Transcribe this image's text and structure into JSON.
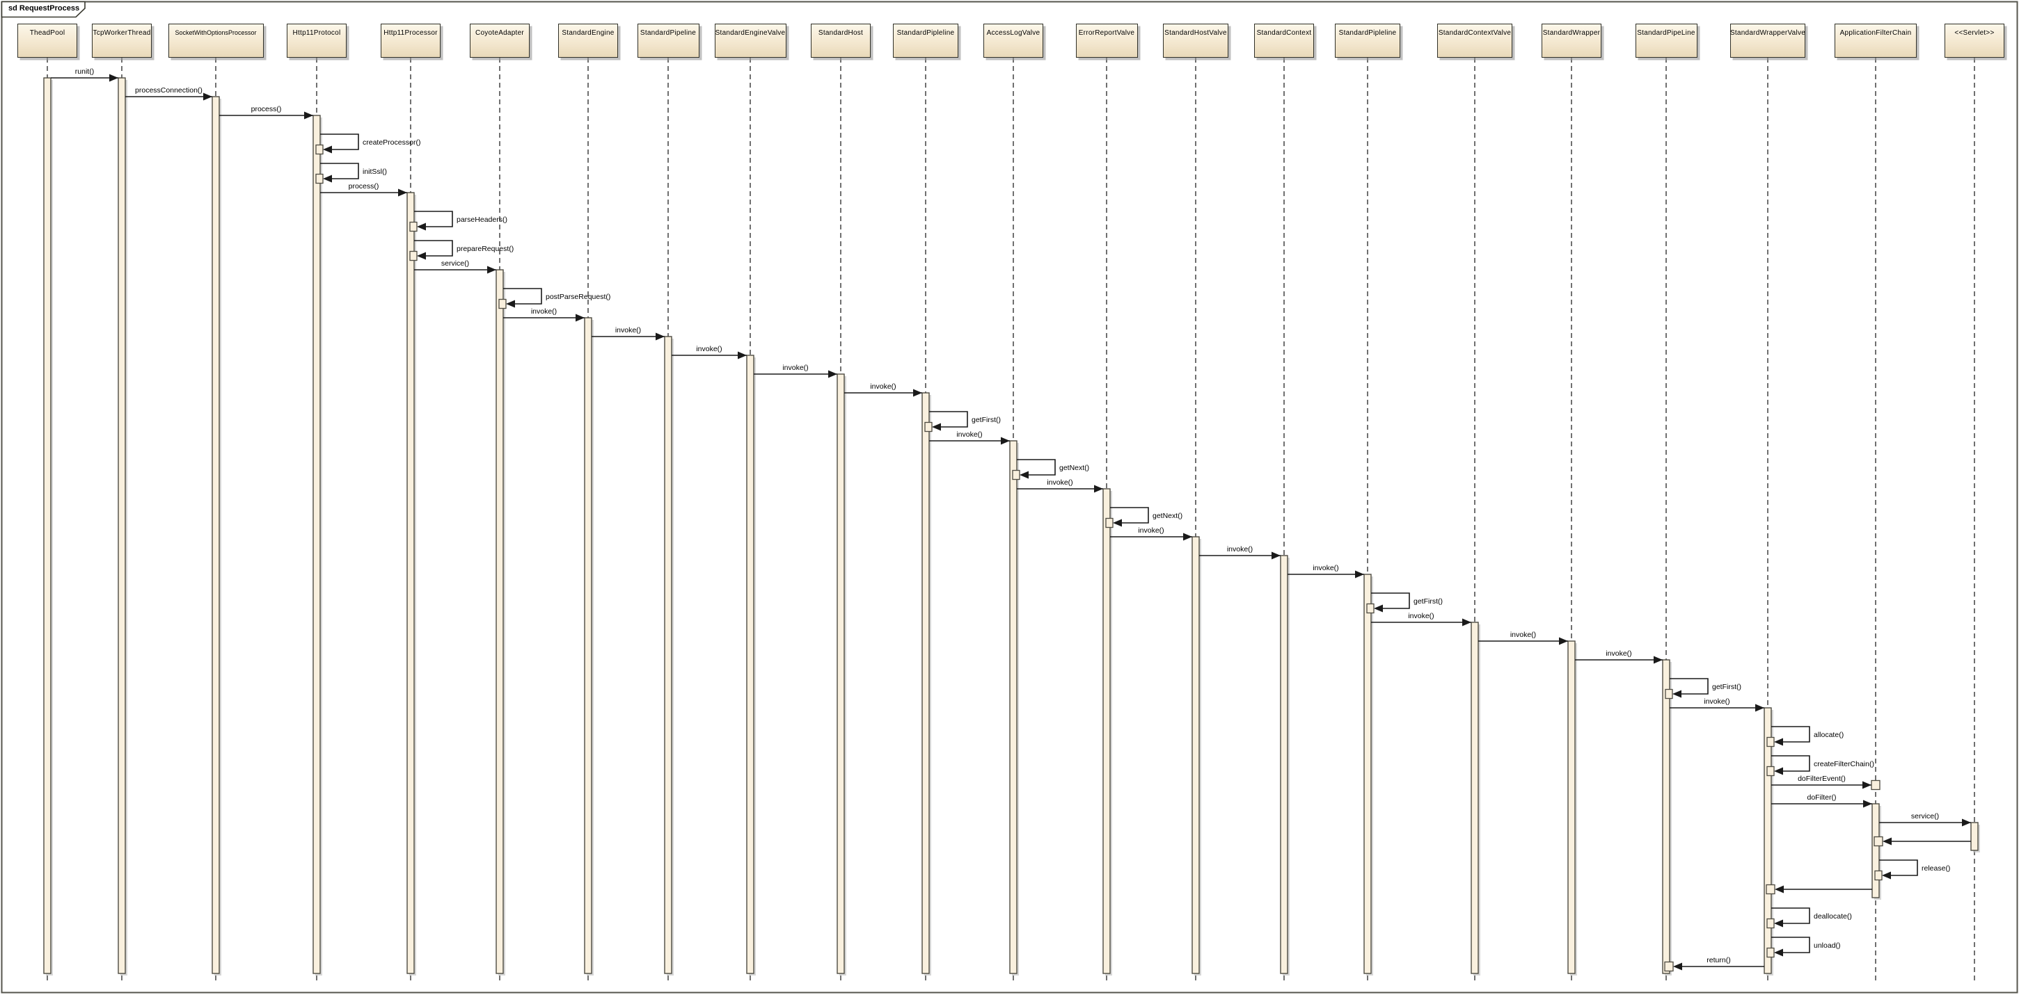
{
  "frame": {
    "label": "sd RequestProcess"
  },
  "colors": {
    "background": "#ffffff",
    "frame_border": "#55544c",
    "tab_fill": "#ffffff",
    "tab_border": "#3a3a31",
    "box_fill_top": "#fcf7ea",
    "box_fill_bottom": "#e9d9b9",
    "box_border": "#2f2f27",
    "box_shadow": "#969696",
    "activation_fill": "#f9f0de",
    "activation_border": "#4d4b42",
    "message_line": "#1a1a1a",
    "lifeline": "#333333"
  },
  "participants": [
    {
      "name": "TheadPool"
    },
    {
      "name": "TcpWorkerThread"
    },
    {
      "name": "SocketWithOptionsProcessor"
    },
    {
      "name": "Http11Protocol"
    },
    {
      "name": "Http11Processor"
    },
    {
      "name": "CoyoteAdapter"
    },
    {
      "name": "StandardEngine"
    },
    {
      "name": "StandardPipeline"
    },
    {
      "name": "StandardEngineValve"
    },
    {
      "name": "StandardHost"
    },
    {
      "name": "StandardPipleline"
    },
    {
      "name": "AccessLogValve"
    },
    {
      "name": "ErrorReportValve"
    },
    {
      "name": "StandardHostValve"
    },
    {
      "name": "StandardContext"
    },
    {
      "name": "StandardPipleline"
    },
    {
      "name": "StandardContextValve"
    },
    {
      "name": "StandardWrapper"
    },
    {
      "name": "StandardPipeLine"
    },
    {
      "name": "StandardWrapperValve"
    },
    {
      "name": "ApplicationFilterChain"
    },
    {
      "name": "<<Servlet>>"
    }
  ],
  "messages": [
    {
      "kind": "call",
      "from": 0,
      "to": 1,
      "label": "runit()"
    },
    {
      "kind": "call",
      "from": 1,
      "to": 2,
      "label": "processConnection()"
    },
    {
      "kind": "call",
      "from": 2,
      "to": 3,
      "label": "process()"
    },
    {
      "kind": "self",
      "on": 3,
      "label": "createProcessor()"
    },
    {
      "kind": "self",
      "on": 3,
      "label": "initSsl()"
    },
    {
      "kind": "call",
      "from": 3,
      "to": 4,
      "label": "process()"
    },
    {
      "kind": "self",
      "on": 4,
      "label": "parseHeaders()"
    },
    {
      "kind": "self",
      "on": 4,
      "label": "prepareRequest()"
    },
    {
      "kind": "call",
      "from": 4,
      "to": 5,
      "label": "service()"
    },
    {
      "kind": "self",
      "on": 5,
      "label": "postParseRequest()"
    },
    {
      "kind": "call",
      "from": 5,
      "to": 6,
      "label": "invoke()"
    },
    {
      "kind": "call",
      "from": 6,
      "to": 7,
      "label": "invoke()"
    },
    {
      "kind": "call",
      "from": 7,
      "to": 8,
      "label": "invoke()"
    },
    {
      "kind": "call",
      "from": 8,
      "to": 9,
      "label": "invoke()"
    },
    {
      "kind": "call",
      "from": 9,
      "to": 10,
      "label": "invoke()"
    },
    {
      "kind": "self",
      "on": 10,
      "label": "getFirst()"
    },
    {
      "kind": "call",
      "from": 10,
      "to": 11,
      "label": "invoke()"
    },
    {
      "kind": "self",
      "on": 11,
      "label": "getNext()"
    },
    {
      "kind": "call",
      "from": 11,
      "to": 12,
      "label": "invoke()"
    },
    {
      "kind": "self",
      "on": 12,
      "label": "getNext()"
    },
    {
      "kind": "call",
      "from": 12,
      "to": 13,
      "label": "invoke()"
    },
    {
      "kind": "call",
      "from": 13,
      "to": 14,
      "label": "invoke()"
    },
    {
      "kind": "call",
      "from": 14,
      "to": 15,
      "label": "invoke()"
    },
    {
      "kind": "self",
      "on": 15,
      "label": "getFirst()"
    },
    {
      "kind": "call",
      "from": 15,
      "to": 16,
      "label": "invoke()"
    },
    {
      "kind": "call",
      "from": 16,
      "to": 17,
      "label": "invoke()"
    },
    {
      "kind": "call",
      "from": 17,
      "to": 18,
      "label": "invoke()"
    },
    {
      "kind": "self",
      "on": 18,
      "label": "getFirst()"
    },
    {
      "kind": "call",
      "from": 18,
      "to": 19,
      "label": "invoke()"
    },
    {
      "kind": "self",
      "on": 19,
      "label": "allocate()"
    },
    {
      "kind": "self",
      "on": 19,
      "label": "createFilterChain()"
    },
    {
      "kind": "call",
      "from": 19,
      "to": 20,
      "label": "doFilterEvent()",
      "mini": true
    },
    {
      "kind": "call",
      "from": 19,
      "to": 20,
      "label": "doFilter()"
    },
    {
      "kind": "call",
      "from": 20,
      "to": 21,
      "label": "service()"
    },
    {
      "kind": "return",
      "from": 21,
      "to": 20,
      "label": ""
    },
    {
      "kind": "self",
      "on": 20,
      "label": "release()"
    },
    {
      "kind": "return",
      "from": 20,
      "to": 19,
      "label": ""
    },
    {
      "kind": "self",
      "on": 19,
      "label": "deallocate()"
    },
    {
      "kind": "self",
      "on": 19,
      "label": "unload()"
    },
    {
      "kind": "return",
      "from": 19,
      "to": 18,
      "label": "return()"
    }
  ]
}
